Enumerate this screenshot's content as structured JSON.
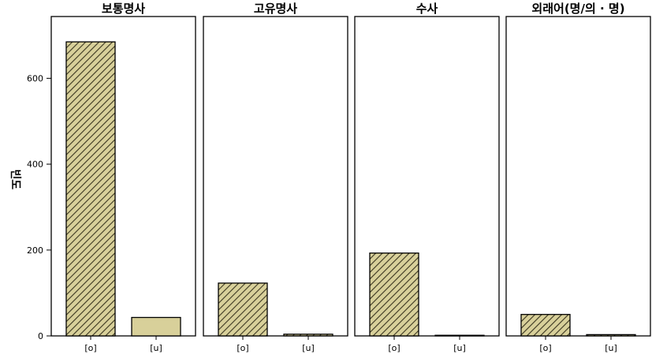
{
  "chart_data": {
    "type": "bar",
    "ylabel": "빈도",
    "ylim": [
      0,
      720
    ],
    "yticks": [
      0,
      200,
      400,
      600
    ],
    "categories": [
      "[o]",
      "[u]"
    ],
    "fill_color": "#d8d09a",
    "hatch_color": "#3b3620",
    "panels": [
      {
        "title": "보통명사",
        "values": [
          685,
          43
        ]
      },
      {
        "title": "고유명사",
        "values": [
          123,
          4
        ]
      },
      {
        "title": "수사",
        "values": [
          193,
          1
        ]
      },
      {
        "title": "외래어(명/의 · 명)",
        "values": [
          50,
          3
        ]
      }
    ]
  }
}
